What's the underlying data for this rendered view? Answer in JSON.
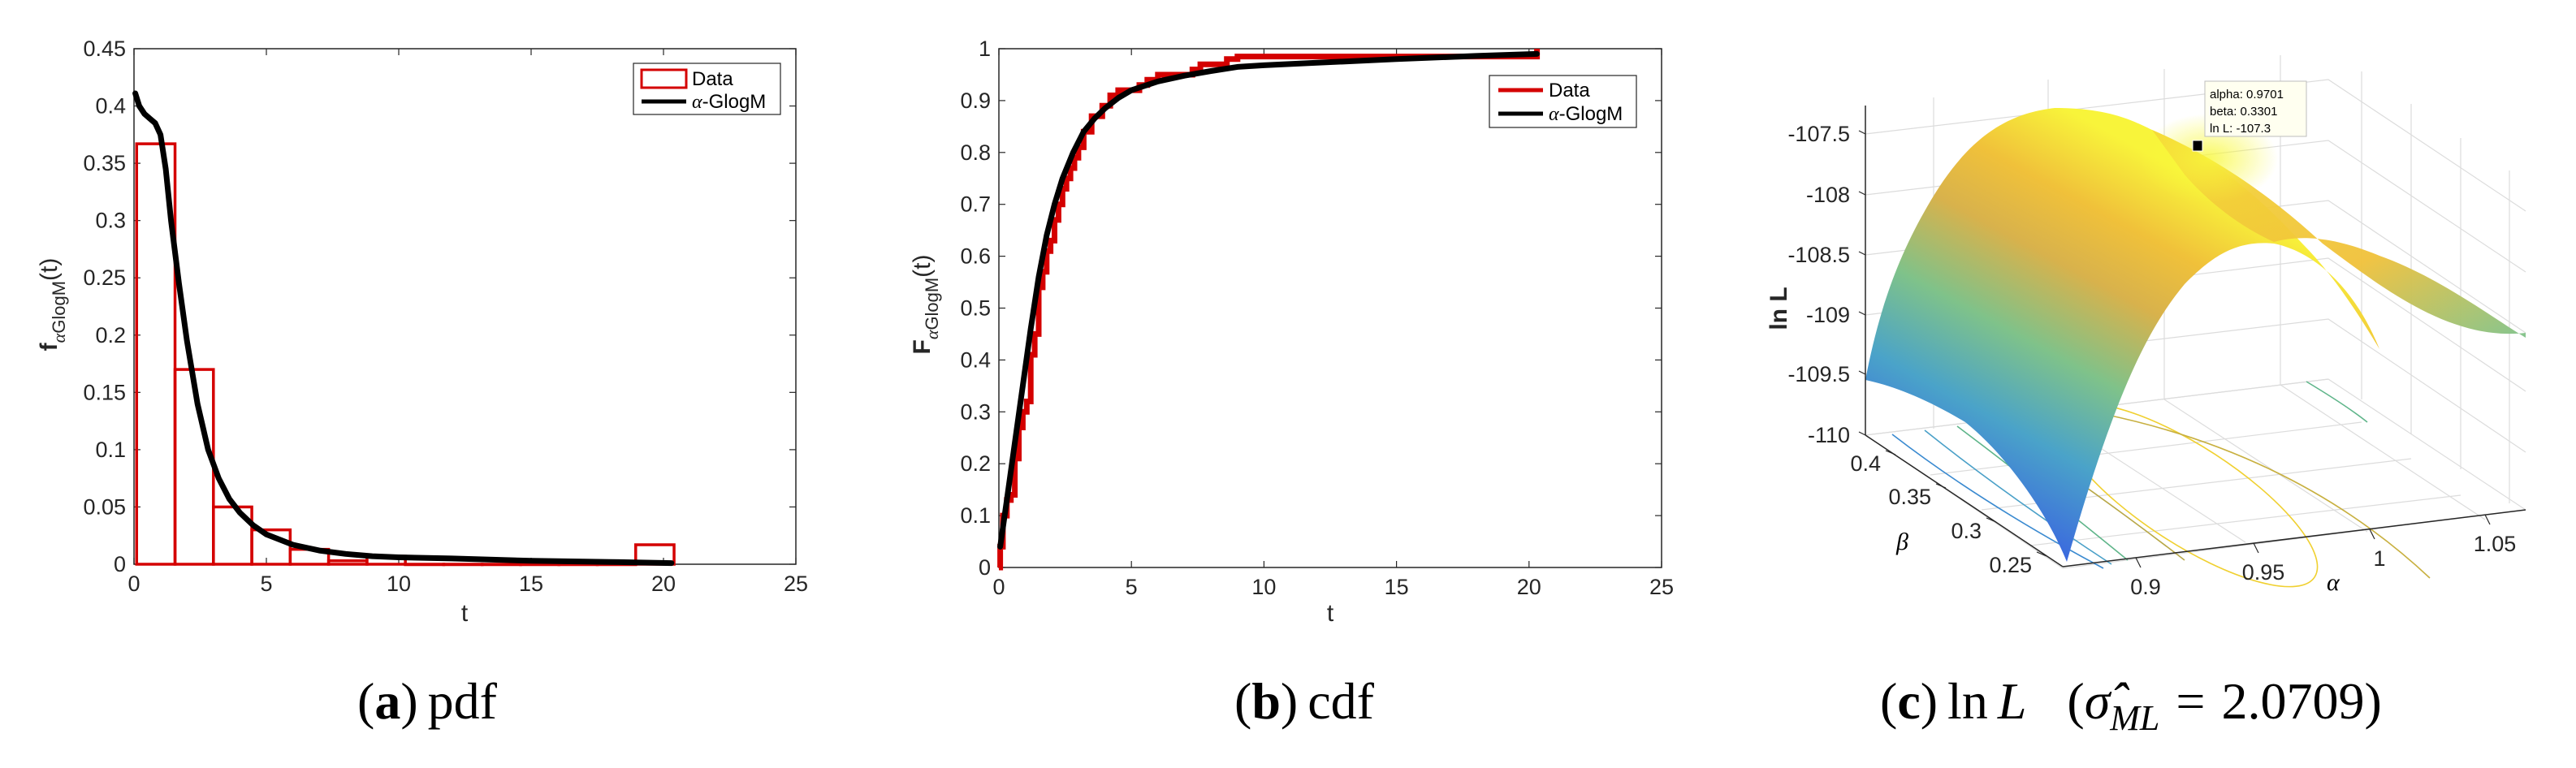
{
  "chart_data": [
    {
      "panel": "a",
      "type": "bar",
      "caption_label": "a",
      "caption_text": "pdf",
      "xlabel": "t",
      "ylabel_main": "f",
      "ylabel_sub": "GlogM",
      "ylabel_sub_greek": "α",
      "ylabel_arg": "(t)",
      "xlim": [
        0,
        25
      ],
      "ylim": [
        0,
        0.45
      ],
      "xticks": [
        "0",
        "5",
        "10",
        "15",
        "20",
        "25"
      ],
      "yticks": [
        "0",
        "0.05",
        "0.1",
        "0.15",
        "0.2",
        "0.25",
        "0.3",
        "0.35",
        "0.4",
        "0.45"
      ],
      "legend": [
        {
          "label": "Data",
          "style": "histogram-box",
          "color": "#d40000"
        },
        {
          "label": "-GlogM",
          "greek": "α",
          "style": "line",
          "color": "#000000"
        }
      ],
      "histogram": {
        "bin_edges": [
          0.1,
          1.55,
          3.0,
          4.45,
          5.9,
          7.35,
          8.8,
          10.25,
          11.7,
          13.15,
          14.6,
          16.05,
          17.5,
          18.95,
          20.4
        ],
        "heights": [
          0.367,
          0.17,
          0.05,
          0.03,
          0.013,
          0.003,
          0.007,
          0,
          0,
          0,
          0,
          0,
          0,
          0.017
        ]
      },
      "fitted_curve": {
        "name": "α-GlogM pdf",
        "t": [
          0.05,
          0.2,
          0.4,
          0.6,
          0.8,
          1.0,
          1.2,
          1.4,
          1.7,
          2.0,
          2.4,
          2.8,
          3.2,
          3.6,
          4.0,
          4.5,
          5.0,
          6.0,
          7.0,
          8.0,
          9.0,
          10.0,
          12.0,
          15.0,
          18.0,
          20.3
        ],
        "f": [
          0.411,
          0.4,
          0.393,
          0.389,
          0.385,
          0.375,
          0.345,
          0.3,
          0.245,
          0.195,
          0.14,
          0.1,
          0.075,
          0.057,
          0.045,
          0.034,
          0.026,
          0.017,
          0.012,
          0.009,
          0.007,
          0.006,
          0.005,
          0.003,
          0.002,
          0.001
        ]
      }
    },
    {
      "panel": "b",
      "type": "line",
      "caption_label": "b",
      "caption_text": "cdf",
      "xlabel": "t",
      "ylabel_main": "F",
      "ylabel_sub": "GlogM",
      "ylabel_sub_greek": "α",
      "ylabel_arg": "(t)",
      "xlim": [
        0,
        25
      ],
      "ylim": [
        0,
        1
      ],
      "xticks": [
        "0",
        "5",
        "10",
        "15",
        "20",
        "25"
      ],
      "yticks": [
        "0",
        "0.1",
        "0.2",
        "0.3",
        "0.4",
        "0.5",
        "0.6",
        "0.7",
        "0.8",
        "0.9",
        "1"
      ],
      "legend": [
        {
          "label": "Data",
          "style": "line",
          "color": "#d40000"
        },
        {
          "label": "-GlogM",
          "greek": "α",
          "style": "line",
          "color": "#000000"
        }
      ],
      "empirical_cdf": {
        "t": [
          0.0,
          0.05,
          0.15,
          0.3,
          0.45,
          0.6,
          0.75,
          0.9,
          1.05,
          1.2,
          1.35,
          1.5,
          1.65,
          1.8,
          1.95,
          2.1,
          2.25,
          2.4,
          2.55,
          2.7,
          2.85,
          3.0,
          3.2,
          3.5,
          3.9,
          4.2,
          4.5,
          5.3,
          5.6,
          6.0,
          7.3,
          7.6,
          8.6,
          9.0,
          20.3
        ],
        "F": [
          0.0,
          0.04,
          0.1,
          0.13,
          0.14,
          0.21,
          0.27,
          0.3,
          0.32,
          0.41,
          0.45,
          0.54,
          0.57,
          0.61,
          0.63,
          0.67,
          0.7,
          0.73,
          0.75,
          0.77,
          0.79,
          0.81,
          0.84,
          0.87,
          0.89,
          0.91,
          0.92,
          0.93,
          0.94,
          0.95,
          0.96,
          0.97,
          0.98,
          0.985,
          1.0
        ]
      },
      "fitted_curve": {
        "name": "α-GlogM cdf",
        "t": [
          0.05,
          0.3,
          0.6,
          0.9,
          1.2,
          1.5,
          1.8,
          2.1,
          2.4,
          2.8,
          3.2,
          3.6,
          4.0,
          4.5,
          5.0,
          6.0,
          7.0,
          8.0,
          9.0,
          10.0,
          12.0,
          15.0,
          18.0,
          20.3
        ],
        "F": [
          0.04,
          0.13,
          0.24,
          0.35,
          0.46,
          0.56,
          0.64,
          0.7,
          0.75,
          0.8,
          0.84,
          0.865,
          0.885,
          0.905,
          0.92,
          0.937,
          0.948,
          0.957,
          0.965,
          0.968,
          0.973,
          0.98,
          0.986,
          0.99
        ]
      }
    },
    {
      "panel": "c",
      "type": "surface",
      "caption_label": "c",
      "caption_text": "ln",
      "caption_var": "L",
      "caption_param": "σ̂",
      "caption_param_sub": "ML",
      "caption_equals": "=",
      "caption_value": "2.0709",
      "zlabel": "ln L",
      "xlabel": "α",
      "ylabel": "β",
      "zticks": [
        "-107.5",
        "-108",
        "-108.5",
        "-109",
        "-109.5",
        "-110"
      ],
      "xticks": [
        "0.9",
        "0.95",
        "1",
        "1.05"
      ],
      "yticks": [
        "0.25",
        "0.3",
        "0.35",
        "0.4"
      ],
      "datatip": {
        "lines": [
          "alpha: 0.9701",
          "beta: 0.3301",
          "ln L: -107.3"
        ],
        "alpha": 0.9701,
        "beta": 0.3301,
        "lnL": -107.3
      },
      "colormap": "parula"
    }
  ]
}
